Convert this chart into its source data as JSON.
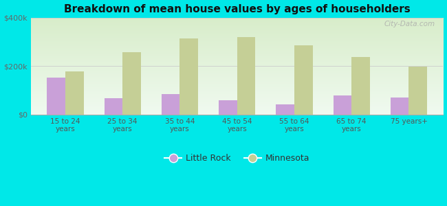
{
  "title": "Breakdown of mean house values by ages of householders",
  "categories": [
    "15 to 24\nyears",
    "25 to 34\nyears",
    "35 to 44\nyears",
    "45 to 54\nyears",
    "55 to 64\nyears",
    "65 to 74\nyears",
    "75 years+"
  ],
  "little_rock": [
    152000,
    68000,
    85000,
    58000,
    42000,
    78000,
    70000
  ],
  "minnesota": [
    178000,
    258000,
    315000,
    320000,
    285000,
    238000,
    197000
  ],
  "little_rock_color": "#c9a0d8",
  "minnesota_color": "#c5cf96",
  "ylim": [
    0,
    400000
  ],
  "yticks": [
    0,
    200000,
    400000
  ],
  "ytick_labels": [
    "$0",
    "$200k",
    "$400k"
  ],
  "bg_top_color": "#f0faf0",
  "bg_bottom_color": "#d8edca",
  "outer_background": "#00e8e8",
  "legend_labels": [
    "Little Rock",
    "Minnesota"
  ],
  "watermark": "City-Data.com",
  "bar_width": 0.32
}
